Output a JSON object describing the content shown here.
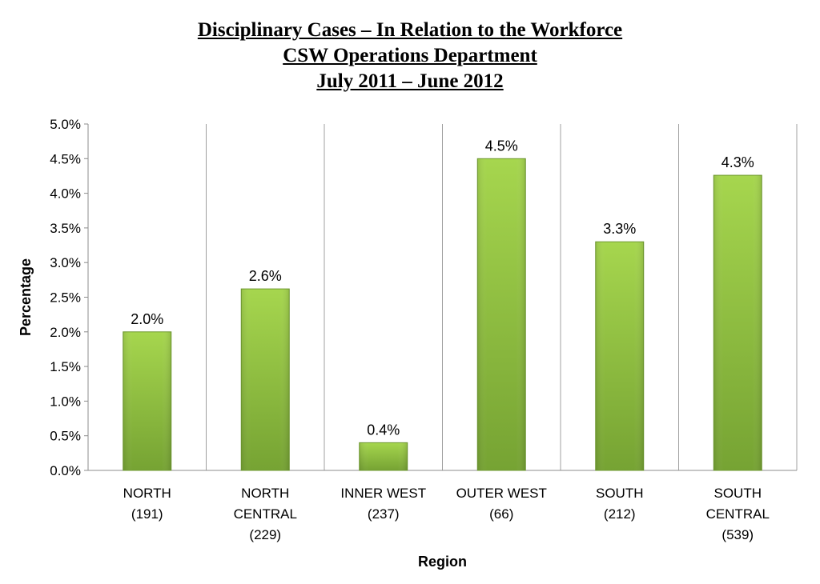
{
  "title_lines": [
    "Disciplinary Cases – In Relation to the Workforce",
    "CSW Operations Department",
    "July 2011 – June 2012"
  ],
  "chart_data": {
    "type": "bar",
    "categories": [
      [
        "NORTH",
        "(191)"
      ],
      [
        "NORTH",
        "CENTRAL",
        "(229)"
      ],
      [
        "INNER WEST",
        "(237)"
      ],
      [
        "OUTER WEST",
        "(66)"
      ],
      [
        "SOUTH",
        "(212)"
      ],
      [
        "SOUTH",
        "CENTRAL",
        "(539)"
      ]
    ],
    "values": [
      2.0,
      2.62,
      0.4,
      4.5,
      3.3,
      4.26
    ],
    "data_labels": [
      "2.0%",
      "2.6%",
      "0.4%",
      "4.5%",
      "3.3%",
      "4.3%"
    ],
    "xlabel": "Region",
    "ylabel": "Percentage",
    "ylim": [
      0,
      5.0
    ],
    "yticks": [
      "0.0%",
      "0.5%",
      "1.0%",
      "1.5%",
      "2.0%",
      "2.5%",
      "3.0%",
      "3.5%",
      "4.0%",
      "4.5%",
      "5.0%"
    ],
    "grid": "vertical-separators",
    "bar_color": "#8cbd3f"
  }
}
